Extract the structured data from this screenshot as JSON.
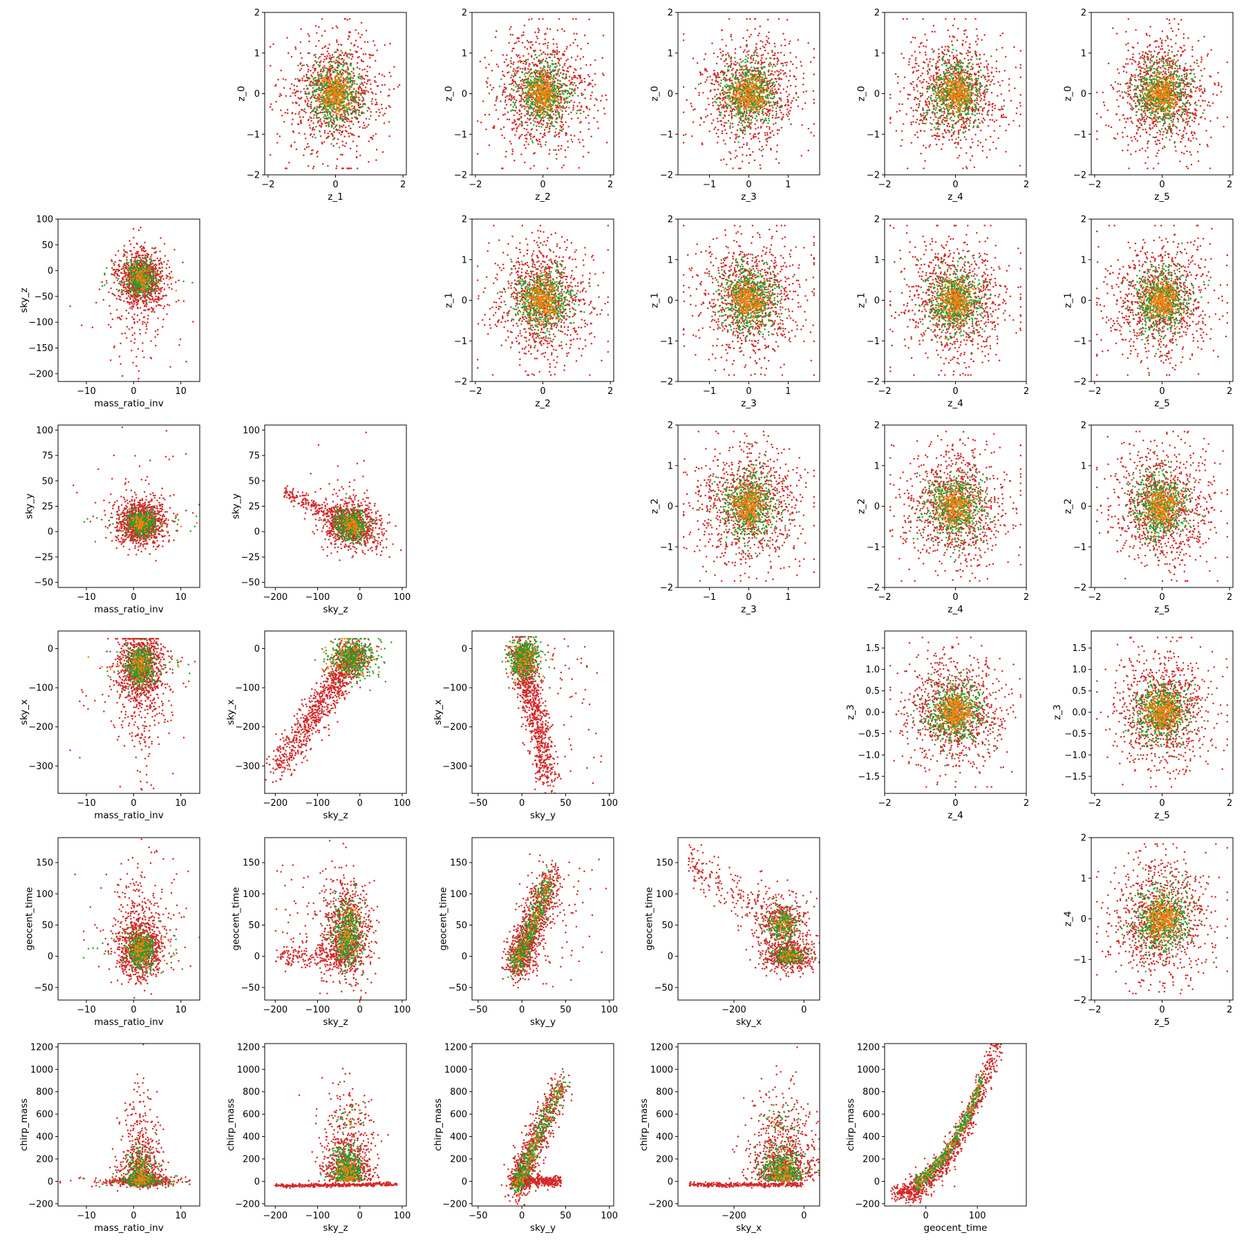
{
  "figure": {
    "type": "pair-plot grid of scatter plots",
    "series_colors": [
      "#d62728",
      "#2ca02c",
      "#ff7f0e"
    ],
    "point_style": "small dots",
    "layout_note": "upper triangle: latent z vs z panels; lower triangle: physical parameter panels"
  },
  "chart_data": [
    {
      "type": "scatter",
      "row": 0,
      "col": 1,
      "xlabel": "z_1",
      "ylabel": "z_0",
      "xlim": [
        -2.1,
        2.1
      ],
      "ylim": [
        -2,
        2
      ],
      "xticks": [
        -2,
        0,
        2
      ],
      "yticks": [
        -2,
        -1,
        0,
        1,
        2
      ],
      "kind": "latent",
      "xspread": 0.55,
      "yspread": 0.55
    },
    {
      "type": "scatter",
      "row": 0,
      "col": 2,
      "xlabel": "z_2",
      "ylabel": "z_0",
      "xlim": [
        -2.1,
        2.1
      ],
      "ylim": [
        -2,
        2
      ],
      "xticks": [
        -2,
        0,
        2
      ],
      "yticks": [
        -2,
        -1,
        0,
        1,
        2
      ],
      "kind": "latent",
      "xspread": 0.55,
      "yspread": 0.55
    },
    {
      "type": "scatter",
      "row": 0,
      "col": 3,
      "xlabel": "z_3",
      "ylabel": "z_0",
      "xlim": [
        -1.8,
        1.8
      ],
      "ylim": [
        -2,
        2
      ],
      "xticks": [
        -1,
        0,
        1
      ],
      "yticks": [
        -2,
        -1,
        0,
        1,
        2
      ],
      "kind": "latent",
      "xspread": 0.5,
      "yspread": 0.55
    },
    {
      "type": "scatter",
      "row": 0,
      "col": 4,
      "xlabel": "z_4",
      "ylabel": "z_0",
      "xlim": [
        -2,
        2
      ],
      "ylim": [
        -2,
        2
      ],
      "xticks": [
        -2,
        0,
        2
      ],
      "yticks": [
        -2,
        -1,
        0,
        1,
        2
      ],
      "kind": "latent",
      "xspread": 0.55,
      "yspread": 0.55
    },
    {
      "type": "scatter",
      "row": 0,
      "col": 5,
      "xlabel": "z_5",
      "ylabel": "z_0",
      "xlim": [
        -2.1,
        2.1
      ],
      "ylim": [
        -2,
        2
      ],
      "xticks": [
        -2,
        0,
        2
      ],
      "yticks": [
        -2,
        -1,
        0,
        1,
        2
      ],
      "kind": "latent",
      "xspread": 0.55,
      "yspread": 0.55
    },
    {
      "type": "scatter",
      "row": 1,
      "col": 0,
      "xlabel": "mass_ratio_inv",
      "ylabel": "sky_z",
      "xlim": [
        -16,
        14
      ],
      "ylim": [
        -215,
        100
      ],
      "xticks": [
        -10,
        0,
        10
      ],
      "yticks": [
        -200,
        -150,
        -100,
        -50,
        0,
        50,
        100
      ],
      "kind": "skyz_mr"
    },
    {
      "type": "scatter",
      "row": 1,
      "col": 2,
      "xlabel": "z_2",
      "ylabel": "z_1",
      "xlim": [
        -2.1,
        2.1
      ],
      "ylim": [
        -2,
        2
      ],
      "xticks": [
        -2,
        0,
        2
      ],
      "yticks": [
        -2,
        -1,
        0,
        1,
        2
      ],
      "kind": "latent",
      "xspread": 0.55,
      "yspread": 0.55
    },
    {
      "type": "scatter",
      "row": 1,
      "col": 3,
      "xlabel": "z_3",
      "ylabel": "z_1",
      "xlim": [
        -1.8,
        1.8
      ],
      "ylim": [
        -2,
        2
      ],
      "xticks": [
        -1,
        0,
        1
      ],
      "yticks": [
        -2,
        -1,
        0,
        1,
        2
      ],
      "kind": "latent",
      "xspread": 0.5,
      "yspread": 0.55
    },
    {
      "type": "scatter",
      "row": 1,
      "col": 4,
      "xlabel": "z_4",
      "ylabel": "z_1",
      "xlim": [
        -2,
        2
      ],
      "ylim": [
        -2,
        2
      ],
      "xticks": [
        -2,
        0,
        2
      ],
      "yticks": [
        -2,
        -1,
        0,
        1,
        2
      ],
      "kind": "latent",
      "xspread": 0.55,
      "yspread": 0.55
    },
    {
      "type": "scatter",
      "row": 1,
      "col": 5,
      "xlabel": "z_5",
      "ylabel": "z_1",
      "xlim": [
        -2.1,
        2.1
      ],
      "ylim": [
        -2,
        2
      ],
      "xticks": [
        -2,
        0,
        2
      ],
      "yticks": [
        -2,
        -1,
        0,
        1,
        2
      ],
      "kind": "latent",
      "xspread": 0.55,
      "yspread": 0.55
    },
    {
      "type": "scatter",
      "row": 2,
      "col": 0,
      "xlabel": "mass_ratio_inv",
      "ylabel": "sky_y",
      "xlim": [
        -16,
        14
      ],
      "ylim": [
        -55,
        105
      ],
      "xticks": [
        -10,
        0,
        10
      ],
      "yticks": [
        -50,
        -25,
        0,
        25,
        50,
        75,
        100
      ],
      "kind": "skyy_mr"
    },
    {
      "type": "scatter",
      "row": 2,
      "col": 1,
      "xlabel": "sky_z",
      "ylabel": "sky_y",
      "xlim": [
        -225,
        110
      ],
      "ylim": [
        -55,
        105
      ],
      "xticks": [
        -200,
        -100,
        0,
        100
      ],
      "yticks": [
        -50,
        -25,
        0,
        25,
        50,
        75,
        100
      ],
      "kind": "skyy_skyz"
    },
    {
      "type": "scatter",
      "row": 2,
      "col": 3,
      "xlabel": "z_3",
      "ylabel": "z_2",
      "xlim": [
        -1.8,
        1.8
      ],
      "ylim": [
        -2,
        2
      ],
      "xticks": [
        -1,
        0,
        1
      ],
      "yticks": [
        -2,
        -1,
        0,
        1,
        2
      ],
      "kind": "latent",
      "xspread": 0.5,
      "yspread": 0.55
    },
    {
      "type": "scatter",
      "row": 2,
      "col": 4,
      "xlabel": "z_4",
      "ylabel": "z_2",
      "xlim": [
        -2,
        2
      ],
      "ylim": [
        -2,
        2
      ],
      "xticks": [
        -2,
        0,
        2
      ],
      "yticks": [
        -2,
        -1,
        0,
        1,
        2
      ],
      "kind": "latent",
      "xspread": 0.55,
      "yspread": 0.55
    },
    {
      "type": "scatter",
      "row": 2,
      "col": 5,
      "xlabel": "z_5",
      "ylabel": "z_2",
      "xlim": [
        -2.1,
        2.1
      ],
      "ylim": [
        -2,
        2
      ],
      "xticks": [
        -2,
        0,
        2
      ],
      "yticks": [
        -2,
        -1,
        0,
        1,
        2
      ],
      "kind": "latent",
      "xspread": 0.55,
      "yspread": 0.55
    },
    {
      "type": "scatter",
      "row": 3,
      "col": 0,
      "xlabel": "mass_ratio_inv",
      "ylabel": "sky_x",
      "xlim": [
        -16,
        14
      ],
      "ylim": [
        -370,
        45
      ],
      "xticks": [
        -10,
        0,
        10
      ],
      "yticks": [
        -300,
        -200,
        -100,
        0
      ],
      "kind": "skyx_mr"
    },
    {
      "type": "scatter",
      "row": 3,
      "col": 1,
      "xlabel": "sky_z",
      "ylabel": "sky_x",
      "xlim": [
        -225,
        110
      ],
      "ylim": [
        -370,
        45
      ],
      "xticks": [
        -200,
        -100,
        0,
        100
      ],
      "yticks": [
        -300,
        -200,
        -100,
        0
      ],
      "kind": "skyx_skyz"
    },
    {
      "type": "scatter",
      "row": 3,
      "col": 2,
      "xlabel": "sky_y",
      "ylabel": "sky_x",
      "xlim": [
        -57,
        105
      ],
      "ylim": [
        -370,
        45
      ],
      "xticks": [
        -50,
        0,
        50,
        100
      ],
      "yticks": [
        -300,
        -200,
        -100,
        0
      ],
      "kind": "skyx_skyy"
    },
    {
      "type": "scatter",
      "row": 3,
      "col": 4,
      "xlabel": "z_4",
      "ylabel": "z_3",
      "xlim": [
        -2,
        2
      ],
      "ylim": [
        -1.9,
        1.9
      ],
      "xticks": [
        -2,
        0,
        2
      ],
      "yticks": [
        -1.5,
        -1.0,
        -0.5,
        0.0,
        0.5,
        1.0,
        1.5
      ],
      "yfmt": 1,
      "kind": "latent",
      "xspread": 0.55,
      "yspread": 0.5
    },
    {
      "type": "scatter",
      "row": 3,
      "col": 5,
      "xlabel": "z_5",
      "ylabel": "z_3",
      "xlim": [
        -2.1,
        2.1
      ],
      "ylim": [
        -1.9,
        1.9
      ],
      "xticks": [
        -2,
        0,
        2
      ],
      "yticks": [
        -1.5,
        -1.0,
        -0.5,
        0.0,
        0.5,
        1.0,
        1.5
      ],
      "yfmt": 1,
      "kind": "latent",
      "xspread": 0.55,
      "yspread": 0.5
    },
    {
      "type": "scatter",
      "row": 4,
      "col": 0,
      "xlabel": "mass_ratio_inv",
      "ylabel": "geocent_time",
      "xlim": [
        -16,
        14
      ],
      "ylim": [
        -70,
        190
      ],
      "xticks": [
        -10,
        0,
        10
      ],
      "yticks": [
        -50,
        0,
        50,
        100,
        150
      ],
      "kind": "gt_mr"
    },
    {
      "type": "scatter",
      "row": 4,
      "col": 1,
      "xlabel": "sky_z",
      "ylabel": "geocent_time",
      "xlim": [
        -225,
        110
      ],
      "ylim": [
        -70,
        190
      ],
      "xticks": [
        -200,
        -100,
        0,
        100
      ],
      "yticks": [
        -50,
        0,
        50,
        100,
        150
      ],
      "kind": "gt_skyz"
    },
    {
      "type": "scatter",
      "row": 4,
      "col": 2,
      "xlabel": "sky_y",
      "ylabel": "geocent_time",
      "xlim": [
        -57,
        105
      ],
      "ylim": [
        -70,
        190
      ],
      "xticks": [
        -50,
        0,
        50,
        100
      ],
      "yticks": [
        -50,
        0,
        50,
        100,
        150
      ],
      "kind": "gt_skyy"
    },
    {
      "type": "scatter",
      "row": 4,
      "col": 3,
      "xlabel": "sky_x",
      "ylabel": "geocent_time",
      "xlim": [
        -360,
        45
      ],
      "ylim": [
        -70,
        190
      ],
      "xticks": [
        -200,
        0
      ],
      "yticks": [
        -50,
        0,
        50,
        100,
        150
      ],
      "kind": "gt_skyx"
    },
    {
      "type": "scatter",
      "row": 4,
      "col": 5,
      "xlabel": "z_5",
      "ylabel": "z_4",
      "xlim": [
        -2.1,
        2.1
      ],
      "ylim": [
        -2,
        2
      ],
      "xticks": [
        -2,
        0,
        2
      ],
      "yticks": [
        -2,
        -1,
        0,
        1,
        2
      ],
      "kind": "latent",
      "xspread": 0.55,
      "yspread": 0.55
    },
    {
      "type": "scatter",
      "row": 5,
      "col": 0,
      "xlabel": "mass_ratio_inv",
      "ylabel": "chirp_mass",
      "xlim": [
        -16,
        14
      ],
      "ylim": [
        -220,
        1230
      ],
      "xticks": [
        -10,
        0,
        10
      ],
      "yticks": [
        -200,
        0,
        200,
        400,
        600,
        800,
        1000,
        1200
      ],
      "kind": "cm_mr"
    },
    {
      "type": "scatter",
      "row": 5,
      "col": 1,
      "xlabel": "sky_z",
      "ylabel": "chirp_mass",
      "xlim": [
        -225,
        110
      ],
      "ylim": [
        -220,
        1230
      ],
      "xticks": [
        -200,
        -100,
        0,
        100
      ],
      "yticks": [
        -200,
        0,
        200,
        400,
        600,
        800,
        1000,
        1200
      ],
      "kind": "cm_skyz"
    },
    {
      "type": "scatter",
      "row": 5,
      "col": 2,
      "xlabel": "sky_y",
      "ylabel": "chirp_mass",
      "xlim": [
        -57,
        105
      ],
      "ylim": [
        -220,
        1230
      ],
      "xticks": [
        -50,
        0,
        50,
        100
      ],
      "yticks": [
        -200,
        0,
        200,
        400,
        600,
        800,
        1000,
        1200
      ],
      "kind": "cm_skyy"
    },
    {
      "type": "scatter",
      "row": 5,
      "col": 3,
      "xlabel": "sky_x",
      "ylabel": "chirp_mass",
      "xlim": [
        -360,
        45
      ],
      "ylim": [
        -220,
        1230
      ],
      "xticks": [
        -200,
        0
      ],
      "yticks": [
        -200,
        0,
        200,
        400,
        600,
        800,
        1000,
        1200
      ],
      "kind": "cm_skyx"
    },
    {
      "type": "scatter",
      "row": 5,
      "col": 4,
      "xlabel": "geocent_time",
      "ylabel": "chirp_mass",
      "xlim": [
        -80,
        195
      ],
      "ylim": [
        -220,
        1230
      ],
      "xticks": [
        0,
        100
      ],
      "yticks": [
        -200,
        0,
        200,
        400,
        600,
        800,
        1000,
        1200
      ],
      "kind": "cm_gt"
    }
  ]
}
